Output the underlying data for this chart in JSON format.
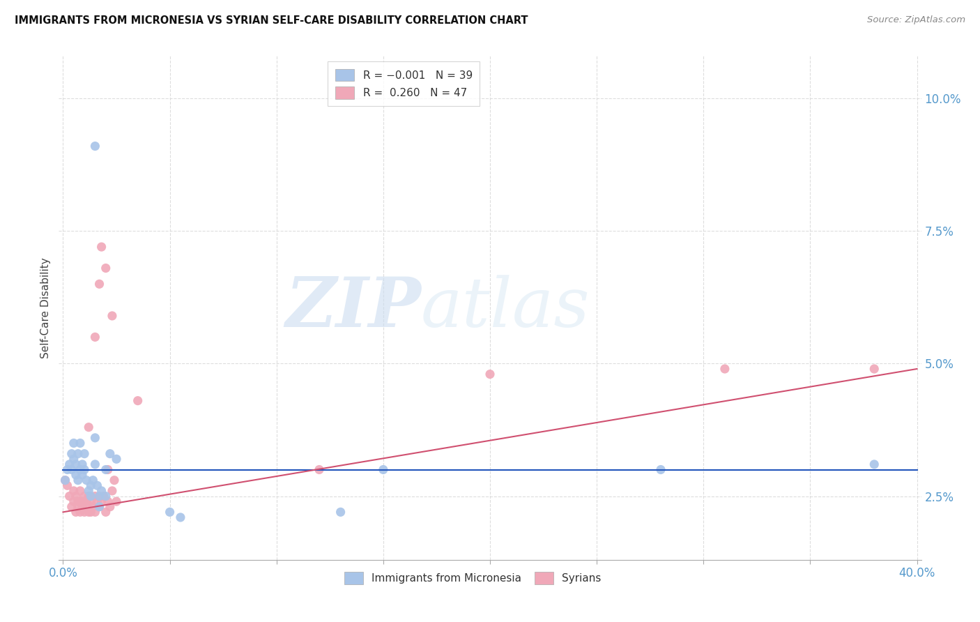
{
  "title": "IMMIGRANTS FROM MICRONESIA VS SYRIAN SELF-CARE DISABILITY CORRELATION CHART",
  "source": "Source: ZipAtlas.com",
  "ylabel": "Self-Care Disability",
  "ytick_labels": [
    "2.5%",
    "5.0%",
    "7.5%",
    "10.0%"
  ],
  "ytick_values": [
    0.025,
    0.05,
    0.075,
    0.1
  ],
  "xlim": [
    -0.002,
    0.402
  ],
  "ylim": [
    0.013,
    0.108
  ],
  "micronesia_color": "#a8c4e8",
  "syrian_color": "#f0a8b8",
  "micronesia_line_color": "#2255bb",
  "syrian_line_color": "#d05070",
  "micronesia_R": -0.001,
  "syrian_R": 0.26,
  "micronesia_line_y0": 0.03,
  "micronesia_line_y1": 0.03,
  "syrian_line_y0": 0.022,
  "syrian_line_y1": 0.049,
  "micronesia_points": [
    [
      0.001,
      0.028
    ],
    [
      0.002,
      0.03
    ],
    [
      0.003,
      0.031
    ],
    [
      0.004,
      0.033
    ],
    [
      0.004,
      0.03
    ],
    [
      0.005,
      0.032
    ],
    [
      0.005,
      0.035
    ],
    [
      0.006,
      0.029
    ],
    [
      0.006,
      0.031
    ],
    [
      0.007,
      0.033
    ],
    [
      0.007,
      0.028
    ],
    [
      0.008,
      0.03
    ],
    [
      0.008,
      0.035
    ],
    [
      0.009,
      0.029
    ],
    [
      0.009,
      0.031
    ],
    [
      0.01,
      0.033
    ],
    [
      0.01,
      0.03
    ],
    [
      0.011,
      0.028
    ],
    [
      0.012,
      0.026
    ],
    [
      0.013,
      0.027
    ],
    [
      0.013,
      0.025
    ],
    [
      0.014,
      0.028
    ],
    [
      0.015,
      0.031
    ],
    [
      0.015,
      0.036
    ],
    [
      0.016,
      0.027
    ],
    [
      0.017,
      0.025
    ],
    [
      0.017,
      0.023
    ],
    [
      0.018,
      0.026
    ],
    [
      0.02,
      0.03
    ],
    [
      0.02,
      0.025
    ],
    [
      0.022,
      0.033
    ],
    [
      0.025,
      0.032
    ],
    [
      0.015,
      0.091
    ],
    [
      0.05,
      0.022
    ],
    [
      0.055,
      0.021
    ],
    [
      0.13,
      0.022
    ],
    [
      0.15,
      0.03
    ],
    [
      0.28,
      0.03
    ],
    [
      0.38,
      0.031
    ]
  ],
  "syrian_points": [
    [
      0.001,
      0.028
    ],
    [
      0.002,
      0.027
    ],
    [
      0.003,
      0.025
    ],
    [
      0.004,
      0.023
    ],
    [
      0.005,
      0.024
    ],
    [
      0.005,
      0.026
    ],
    [
      0.006,
      0.022
    ],
    [
      0.006,
      0.025
    ],
    [
      0.007,
      0.023
    ],
    [
      0.007,
      0.024
    ],
    [
      0.008,
      0.026
    ],
    [
      0.008,
      0.022
    ],
    [
      0.009,
      0.024
    ],
    [
      0.009,
      0.023
    ],
    [
      0.01,
      0.025
    ],
    [
      0.01,
      0.022
    ],
    [
      0.011,
      0.024
    ],
    [
      0.011,
      0.023
    ],
    [
      0.012,
      0.025
    ],
    [
      0.012,
      0.022
    ],
    [
      0.013,
      0.024
    ],
    [
      0.013,
      0.022
    ],
    [
      0.014,
      0.023
    ],
    [
      0.015,
      0.025
    ],
    [
      0.015,
      0.022
    ],
    [
      0.016,
      0.024
    ],
    [
      0.017,
      0.023
    ],
    [
      0.018,
      0.024
    ],
    [
      0.019,
      0.025
    ],
    [
      0.02,
      0.022
    ],
    [
      0.021,
      0.024
    ],
    [
      0.021,
      0.03
    ],
    [
      0.022,
      0.023
    ],
    [
      0.023,
      0.026
    ],
    [
      0.024,
      0.028
    ],
    [
      0.025,
      0.024
    ],
    [
      0.012,
      0.038
    ],
    [
      0.015,
      0.055
    ],
    [
      0.017,
      0.065
    ],
    [
      0.018,
      0.072
    ],
    [
      0.02,
      0.068
    ],
    [
      0.023,
      0.059
    ],
    [
      0.035,
      0.043
    ],
    [
      0.12,
      0.03
    ],
    [
      0.2,
      0.048
    ],
    [
      0.31,
      0.049
    ],
    [
      0.38,
      0.049
    ]
  ],
  "watermark_zip": "ZIP",
  "watermark_atlas": "atlas",
  "background_color": "#ffffff",
  "grid_color": "#dddddd",
  "tick_color": "#5599cc",
  "axis_color": "#aaaaaa"
}
